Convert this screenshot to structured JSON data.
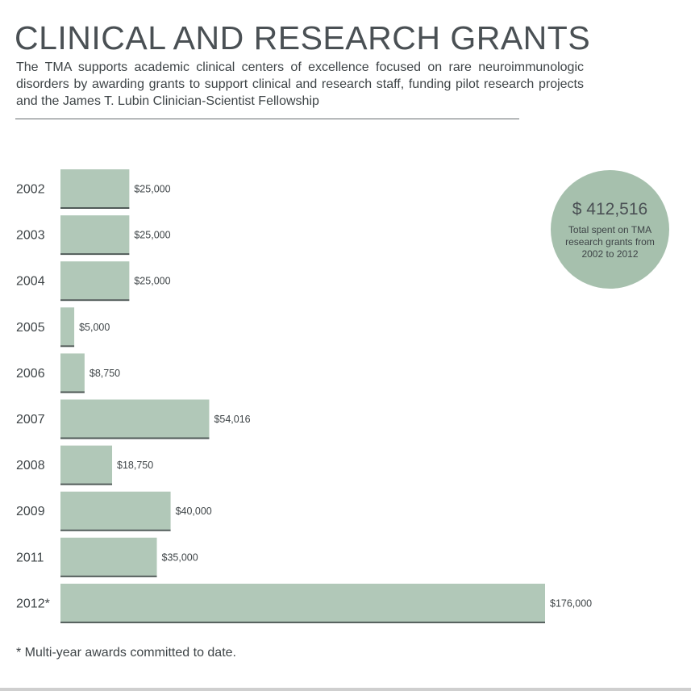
{
  "header": {
    "title": "CLINICAL AND RESEARCH GRANTS",
    "subtitle": "The TMA supports academic clinical centers of excellence focused on rare neuroimmunologic disorders by awarding grants to support clinical and research staff, funding pilot research projects and the James T. Lubin Clinician-Scientist Fellowship"
  },
  "summary": {
    "total": "$ 412,516",
    "caption": "Total spent on TMA research grants from 2002 to 2012"
  },
  "footnote": "* Multi-year awards committed to date.",
  "colors": {
    "bar": "#b1c8b8",
    "bar_base": "#4f5a57",
    "circle": "#a6c0ad",
    "text": "#3e4447"
  },
  "chart_data": {
    "type": "bar",
    "orientation": "horizontal",
    "categories": [
      "2002",
      "2003",
      "2004",
      "2005",
      "2006",
      "2007",
      "2008",
      "2009",
      "2011",
      "2012*"
    ],
    "values": [
      25000,
      25000,
      25000,
      5000,
      8750,
      54016,
      18750,
      40000,
      35000,
      176000
    ],
    "value_labels": [
      "$25,000",
      "$25,000",
      "$25,000",
      "$5,000",
      "$8,750",
      "$54,016",
      "$18,750",
      "$40,000",
      "$35,000",
      "$176,000"
    ],
    "title": "",
    "xlabel": "",
    "ylabel": "",
    "xlim": [
      0,
      176000
    ],
    "grid": false,
    "legend": "none"
  }
}
